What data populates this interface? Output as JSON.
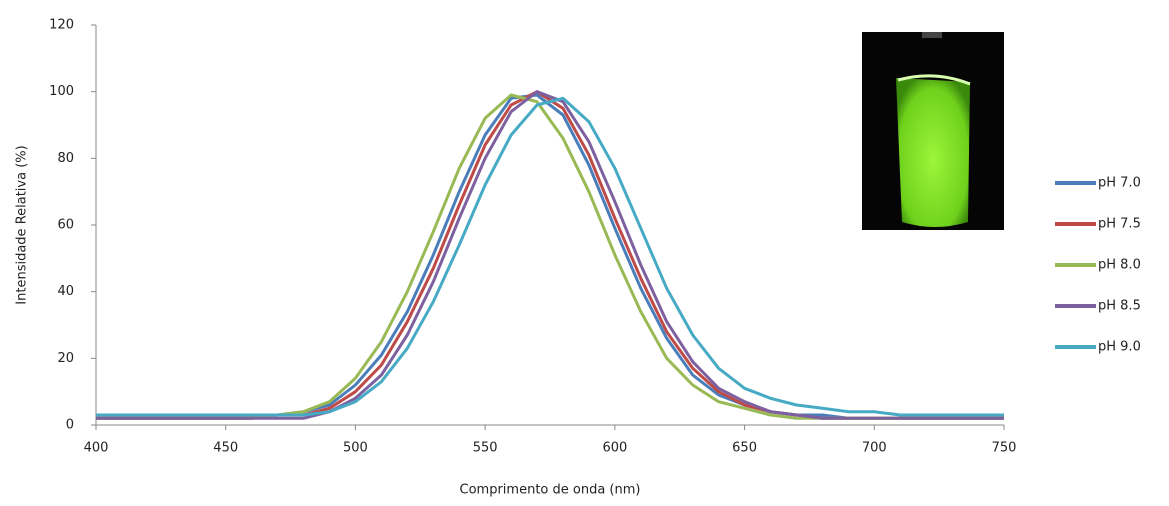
{
  "chart_data": {
    "type": "line",
    "x_label": "Comprimento de onda (nm)",
    "y_label": "Intensidade Relativa (%)",
    "x": [
      400,
      410,
      420,
      430,
      440,
      450,
      460,
      470,
      480,
      490,
      500,
      510,
      520,
      530,
      540,
      550,
      560,
      570,
      580,
      590,
      600,
      610,
      620,
      630,
      640,
      650,
      660,
      670,
      680,
      690,
      700,
      710,
      720,
      730,
      740,
      750
    ],
    "series": [
      {
        "name": "pH 7.0",
        "color": "#4a7ebb",
        "values": [
          2,
          2,
          2,
          2,
          2,
          2,
          2,
          3,
          4,
          6,
          12,
          21,
          34,
          51,
          70,
          87,
          98,
          99,
          93,
          78,
          59,
          41,
          26,
          15,
          9,
          6,
          4,
          3,
          3,
          2,
          2,
          2,
          2,
          2,
          2,
          2
        ]
      },
      {
        "name": "pH 7.5",
        "color": "#be4b48",
        "values": [
          2,
          2,
          2,
          2,
          2,
          2,
          2,
          3,
          3,
          5,
          10,
          18,
          31,
          47,
          66,
          84,
          96,
          100,
          95,
          81,
          62,
          44,
          28,
          17,
          10,
          6,
          4,
          3,
          2,
          2,
          2,
          2,
          2,
          2,
          2,
          2
        ]
      },
      {
        "name": "pH 8.0",
        "color": "#98b954",
        "values": [
          2,
          2,
          2,
          2,
          2,
          2,
          2,
          3,
          4,
          7,
          14,
          25,
          40,
          58,
          77,
          92,
          99,
          97,
          86,
          70,
          51,
          34,
          20,
          12,
          7,
          5,
          3,
          2,
          2,
          2,
          2,
          2,
          2,
          2,
          2,
          2
        ]
      },
      {
        "name": "pH 8.5",
        "color": "#7d60a0",
        "values": [
          2,
          2,
          2,
          2,
          2,
          2,
          2,
          2,
          2,
          4,
          8,
          15,
          27,
          43,
          62,
          80,
          94,
          100,
          97,
          85,
          67,
          48,
          31,
          19,
          11,
          7,
          4,
          3,
          2,
          2,
          2,
          2,
          2,
          2,
          2,
          2
        ]
      },
      {
        "name": "pH 9.0",
        "color": "#46aac5",
        "values": [
          3,
          3,
          3,
          3,
          3,
          3,
          3,
          3,
          3,
          4,
          7,
          13,
          23,
          37,
          54,
          72,
          87,
          96,
          98,
          91,
          77,
          59,
          41,
          27,
          17,
          11,
          8,
          6,
          5,
          4,
          4,
          3,
          3,
          3,
          3,
          3
        ]
      }
    ],
    "xlim": [
      400,
      750
    ],
    "xticks": [
      400,
      450,
      500,
      550,
      600,
      650,
      700,
      750
    ],
    "ylim": [
      0,
      120
    ],
    "yticks": [
      0,
      20,
      40,
      60,
      80,
      100,
      120
    ],
    "legend": "right"
  }
}
